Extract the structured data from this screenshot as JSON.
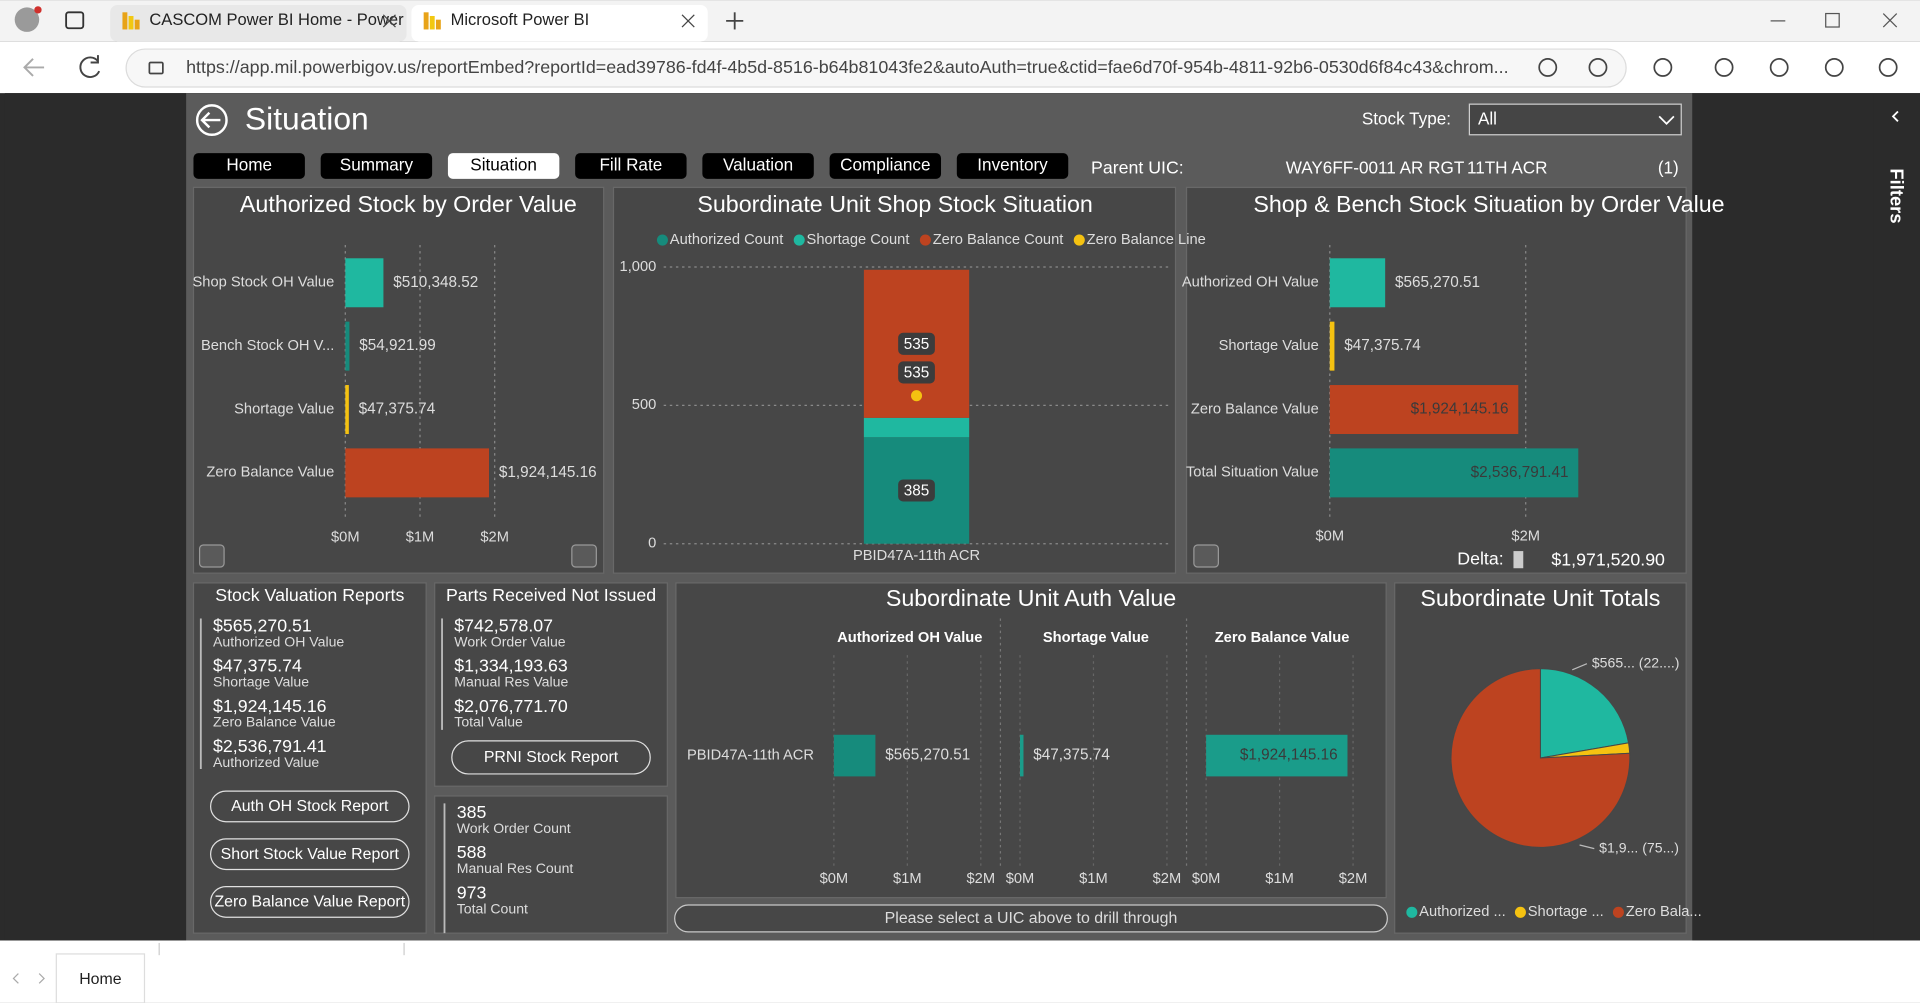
{
  "browser": {
    "tabs": [
      "CASCOM Power BI Home - Power",
      "Microsoft Power BI"
    ],
    "url": "https://app.mil.powerbigov.us/reportEmbed?reportId=ead39786-fd4f-4b5d-8516-b64b81043fe2&autoAuth=true&ctid=fae6d70f-954b-4811-92b6-0530d6f84c43&chrom..."
  },
  "report": {
    "title": "Situation",
    "stock_type_label": "Stock Type:",
    "stock_type": "All",
    "nav": [
      "Home",
      "Summary",
      "Situation",
      "Fill Rate",
      "Valuation",
      "Compliance",
      "Inventory"
    ],
    "active_nav": 2,
    "parent_uic_label": "Parent UIC:",
    "parent_uic": "WAY6FF-0011 AR RGT",
    "parent_uic_name": "11TH ACR",
    "parent_uic_count": "(1)",
    "filters": "Filters",
    "page_tab": "Home"
  },
  "charts": [
    {
      "type": "hbar",
      "title": "Authorized Stock by Order Value",
      "categories": [
        "Shop Stock OH Value",
        "Bench Stock OH V...",
        "Shortage Value",
        "Zero Balance Value"
      ],
      "values": [
        510348.52,
        54921.99,
        47375.74,
        1924145.16
      ],
      "value_labels": [
        "$510,348.52",
        "$54,921.99",
        "$47,375.74",
        "$1,924,145.16"
      ],
      "colors": [
        "#1fb8a0",
        "#168b7c",
        "#f5c211",
        "#bd4320"
      ],
      "xlim": [
        0,
        3000000
      ],
      "xticks": [
        {
          "value": 0,
          "label": "$0M"
        },
        {
          "value": 1000000,
          "label": "$1M"
        },
        {
          "value": 2000000,
          "label": "$2M"
        }
      ]
    },
    {
      "type": "stacked_column",
      "title": "Subordinate Unit Shop Stock Situation",
      "categories": [
        "PBID47A-11th ACR"
      ],
      "series": [
        {
          "name": "Authorized Count",
          "color": "#168b7c",
          "values": [
            385
          ],
          "data_labels": true
        },
        {
          "name": "Shortage Count",
          "color": "#1fb8a0",
          "values": [
            70
          ],
          "data_labels": false
        },
        {
          "name": "Zero Balance Count",
          "color": "#bd4320",
          "values": [
            535
          ],
          "data_labels": true
        },
        {
          "name": "Zero Balance Line",
          "color": "#f5c211",
          "type": "line",
          "values": [
            535
          ],
          "data_labels": true
        }
      ],
      "ylim": [
        0,
        1000
      ],
      "yticks": [
        0,
        500,
        {
          "value": 1000,
          "label": "1,000"
        }
      ],
      "grid": true
    },
    {
      "type": "hbar",
      "title": "Shop & Bench Stock Situation by Order Value",
      "categories": [
        "Authorized OH Value",
        "Shortage Value",
        "Zero Balance Value",
        "Total Situation Value"
      ],
      "values": [
        565270.51,
        47375.74,
        1924145.16,
        2536791.41
      ],
      "value_labels": [
        "$565,270.51",
        "$47,375.74",
        "$1,924,145.16",
        "$2,536,791.41"
      ],
      "colors": [
        "#1fb8a0",
        "#f5c211",
        "#bd4320",
        "#168b7c"
      ],
      "xlim": [
        0,
        3500000
      ],
      "xticks": [
        {
          "value": 0,
          "label": "$0M"
        },
        {
          "value": 2000000,
          "label": "$2M"
        }
      ],
      "delta_label": "Delta:",
      "delta": "$1,971,520.90"
    },
    {
      "type": "small_multiple_bar",
      "title": "Subordinate Unit Auth Value",
      "categories": [
        "PBID47A-11th ACR"
      ],
      "series": [
        {
          "name": "Authorized OH Value",
          "color": "#168b7c",
          "values": [
            565270.51
          ],
          "value_labels": [
            "$565,270.51"
          ]
        },
        {
          "name": "Shortage Value",
          "color": "#1a9c8a",
          "values": [
            47375.74
          ],
          "value_labels": [
            "$47,375.74"
          ]
        },
        {
          "name": "Zero Balance Value",
          "color": "#1a9c8a",
          "values": [
            1924145.16
          ],
          "value_labels": [
            "$1,924,145.16"
          ]
        }
      ],
      "xlim": [
        0,
        2300000
      ],
      "xticks": [
        {
          "value": 0,
          "label": "$0M"
        },
        {
          "value": 1000000,
          "label": "$1M"
        },
        {
          "value": 2000000,
          "label": "$2M"
        }
      ]
    },
    {
      "type": "pie",
      "title": "Subordinate Unit Totals",
      "categories": [
        "Authorized ...",
        "Shortage ...",
        "Zero Bala..."
      ],
      "values": [
        565270.51,
        47375.74,
        1924145.16
      ],
      "value_labels": [
        "$565... (22....)",
        null,
        "$1,9... (75...)"
      ],
      "colors": [
        "#1fb8a0",
        "#f5c211",
        "#bd4320"
      ]
    }
  ],
  "stock_valuation": {
    "title": "Stock Valuation Reports",
    "items": [
      {
        "value": "$565,270.51",
        "label": "Authorized OH Value"
      },
      {
        "value": "$47,375.74",
        "label": "Shortage Value"
      },
      {
        "value": "$1,924,145.16",
        "label": "Zero Balance Value"
      },
      {
        "value": "$2,536,791.41",
        "label": "Authorized Value"
      }
    ],
    "buttons": [
      "Auth OH Stock Report",
      "Short Stock Value Report",
      "Zero Balance Value Report"
    ]
  },
  "prni": {
    "title": "Parts Received Not Issued",
    "items": [
      {
        "value": "$742,578.07",
        "label": "Work Order Value"
      },
      {
        "value": "$1,334,193.63",
        "label": "Manual Res Value"
      },
      {
        "value": "$2,076,771.70",
        "label": "Total Value"
      }
    ],
    "button": "PRNI Stock Report"
  },
  "counts": {
    "items": [
      {
        "value": 385,
        "label": "Work Order Count"
      },
      {
        "value": 588,
        "label": "Manual Res Count"
      },
      {
        "value": 973,
        "label": "Total Count"
      }
    ]
  },
  "drill_through": "Please select a UIC above to drill through"
}
